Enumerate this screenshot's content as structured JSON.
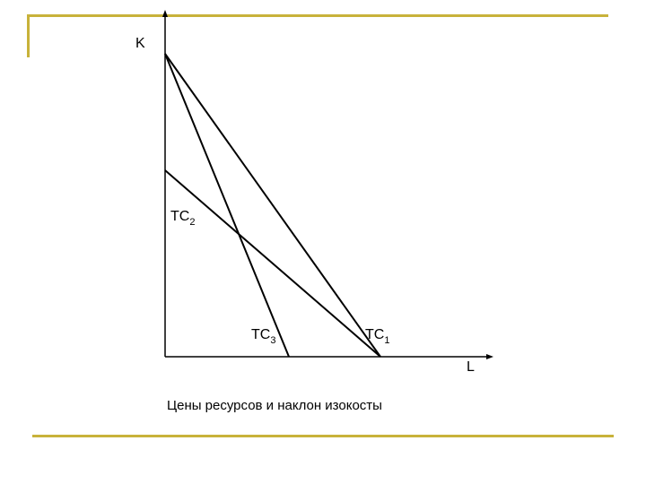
{
  "diagram": {
    "axis_y_label": "K",
    "axis_x_label": "L",
    "lines": [
      {
        "base": "TC",
        "sub": "1"
      },
      {
        "base": "TC",
        "sub": "2"
      },
      {
        "base": "TC",
        "sub": "3"
      }
    ],
    "caption": "Цены ресурсов и наклон изокосты",
    "colors": {
      "frame_accent": "#c8b23a",
      "lines": "#000000"
    }
  }
}
